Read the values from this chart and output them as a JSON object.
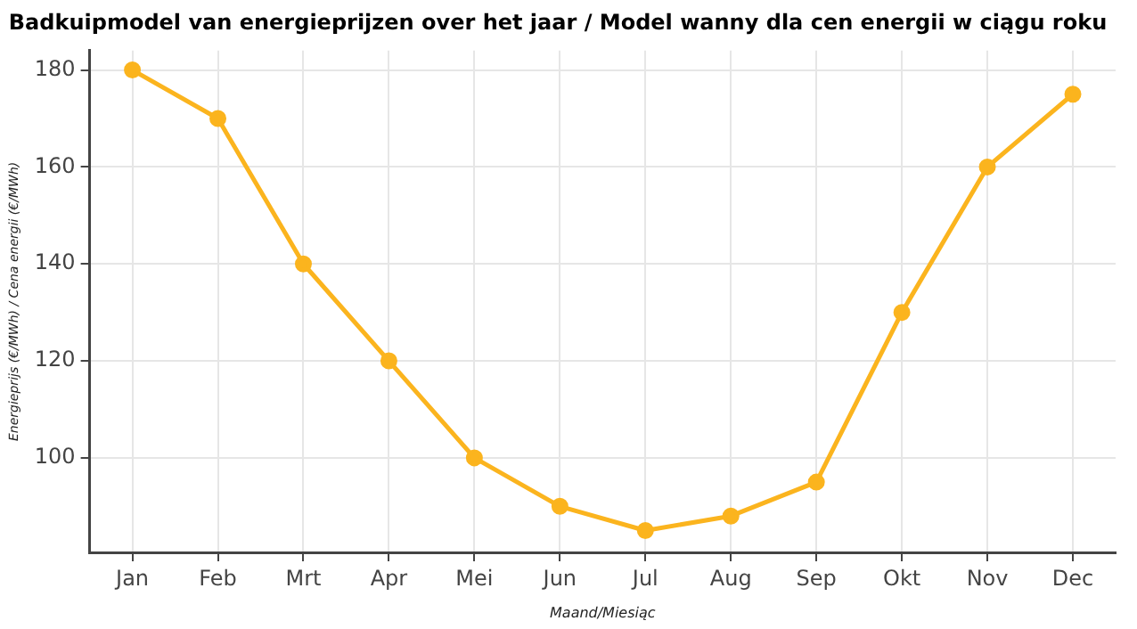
{
  "chart_data": {
    "type": "line",
    "title": "Badkuipmodel van energieprijzen over het jaar / Model wanny dla cen energii w ciągu roku",
    "xlabel": "Maand/Miesiąc",
    "ylabel": "Energieprijs (€/MWh) / Cena energii (€/MWh)",
    "categories": [
      "Jan",
      "Feb",
      "Mrt",
      "Apr",
      "Mei",
      "Jun",
      "Jul",
      "Aug",
      "Sep",
      "Okt",
      "Nov",
      "Dec"
    ],
    "series": [
      {
        "color": "#fbb41e",
        "values": [
          180,
          170,
          140,
          120,
          100,
          90,
          85,
          88,
          95,
          130,
          160,
          175
        ]
      }
    ],
    "ylim": [
      80.5,
      184
    ],
    "yticks": [
      100,
      120,
      140,
      160,
      180
    ],
    "grid": true,
    "marker": "circle",
    "line_style": "solid",
    "legend": false
  }
}
